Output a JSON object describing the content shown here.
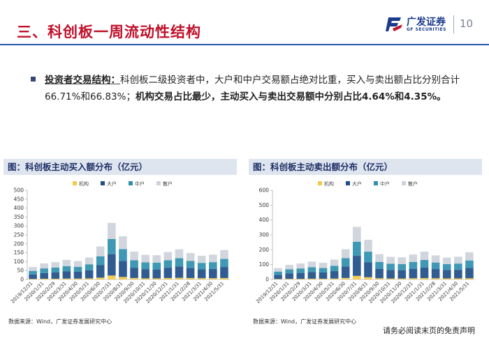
{
  "header": {
    "title": "三、科创板一周流动性结构",
    "logo_name": "广发证券",
    "logo_sub": "GF SECURITIES",
    "page_number": "10",
    "colors": {
      "accent": "#c0102a",
      "brand": "#1a3a8c",
      "rule": "#2a57a6"
    }
  },
  "bullet": {
    "keyword": "投资者交易结构：",
    "text1": "科创板二级投资者中，大户和中户交易额占绝对比重，买入与卖出额占比分别合计66.71%和66.83%；",
    "bold_text": "机构交易占比最少，主动买入与卖出交易额中分别占比4.64%和4.35%。"
  },
  "charts": {
    "left_header": "图：科创板主动买入额分布（亿元）",
    "right_header": "图：科创板主动卖出额分布（亿元）",
    "left_source": "数据来源：Wind，广发证券发展研究中心",
    "right_source": "数据来源：Wind，广发证券发展研究中心"
  },
  "footer": {
    "disclaimer": "请务必阅读末页的免责声明"
  },
  "chart_data": [
    {
      "type": "bar",
      "stacked": true,
      "title": "科创板主动买入额分布（亿元）",
      "ylim": [
        0,
        500
      ],
      "yticks": [
        0,
        50,
        100,
        150,
        200,
        250,
        300,
        350,
        400,
        450,
        500
      ],
      "legend": [
        "机构",
        "大户",
        "中户",
        "散户"
      ],
      "legend_position": "top",
      "categories": [
        "2019/12/31",
        "2020/1/31",
        "2020/2/29",
        "2020/3/31",
        "2020/4/30",
        "2020/5/31",
        "2020/6/30",
        "2020/7/31",
        "2020/8/31",
        "2020/9/30",
        "2020/10/31",
        "2020/11/30",
        "2020/12/31",
        "2021/1/31",
        "2021/2/28",
        "2021/3/31",
        "2021/4/30",
        "2021/5/31"
      ],
      "series": [
        {
          "name": "机构",
          "color": "#f2c94c",
          "values": [
            3,
            4,
            4,
            5,
            5,
            6,
            10,
            22,
            14,
            8,
            6,
            6,
            8,
            9,
            8,
            7,
            7,
            8
          ]
        },
        {
          "name": "大户",
          "color": "#1f4e88",
          "values": [
            25,
            32,
            35,
            40,
            38,
            45,
            70,
            120,
            90,
            58,
            52,
            50,
            58,
            64,
            56,
            50,
            52,
            62
          ]
        },
        {
          "name": "中户",
          "color": "#2f8fae",
          "values": [
            20,
            26,
            28,
            30,
            28,
            34,
            50,
            85,
            66,
            42,
            38,
            38,
            42,
            46,
            40,
            36,
            38,
            45
          ]
        },
        {
          "name": "散户",
          "color": "#cdd3db",
          "values": [
            22,
            28,
            30,
            35,
            32,
            38,
            55,
            90,
            72,
            48,
            42,
            42,
            46,
            50,
            44,
            40,
            42,
            50
          ]
        }
      ]
    },
    {
      "type": "bar",
      "stacked": true,
      "title": "科创板主动卖出额分布（亿元）",
      "ylim": [
        0,
        600
      ],
      "yticks": [
        0,
        100,
        200,
        300,
        400,
        500,
        600
      ],
      "legend": [
        "机构",
        "大户",
        "中户",
        "散户"
      ],
      "legend_position": "top",
      "categories": [
        "2019/12/31",
        "2020/1/31",
        "2020/2/29",
        "2020/3/31",
        "2020/4/30",
        "2020/5/31",
        "2020/6/30",
        "2020/7/31",
        "2020/8/31",
        "2020/9/30",
        "2020/10/31",
        "2020/11/30",
        "2020/12/31",
        "2021/1/31",
        "2021/2/28",
        "2021/3/31",
        "2021/4/30",
        "2021/5/31"
      ],
      "series": [
        {
          "name": "机构",
          "color": "#f2c94c",
          "values": [
            3,
            4,
            4,
            5,
            5,
            6,
            10,
            24,
            15,
            8,
            6,
            6,
            8,
            9,
            8,
            7,
            7,
            8
          ]
        },
        {
          "name": "大户",
          "color": "#1f4e88",
          "values": [
            28,
            36,
            40,
            44,
            42,
            50,
            78,
            135,
            100,
            64,
            58,
            55,
            64,
            72,
            62,
            56,
            58,
            70
          ]
        },
        {
          "name": "中户",
          "color": "#2f8fae",
          "values": [
            22,
            28,
            30,
            33,
            30,
            36,
            55,
            95,
            72,
            46,
            42,
            42,
            46,
            50,
            44,
            40,
            42,
            50
          ]
        },
        {
          "name": "散户",
          "color": "#cdd3db",
          "values": [
            24,
            30,
            34,
            38,
            35,
            42,
            60,
            100,
            80,
            52,
            46,
            46,
            50,
            56,
            48,
            44,
            46,
            55
          ]
        }
      ]
    }
  ]
}
